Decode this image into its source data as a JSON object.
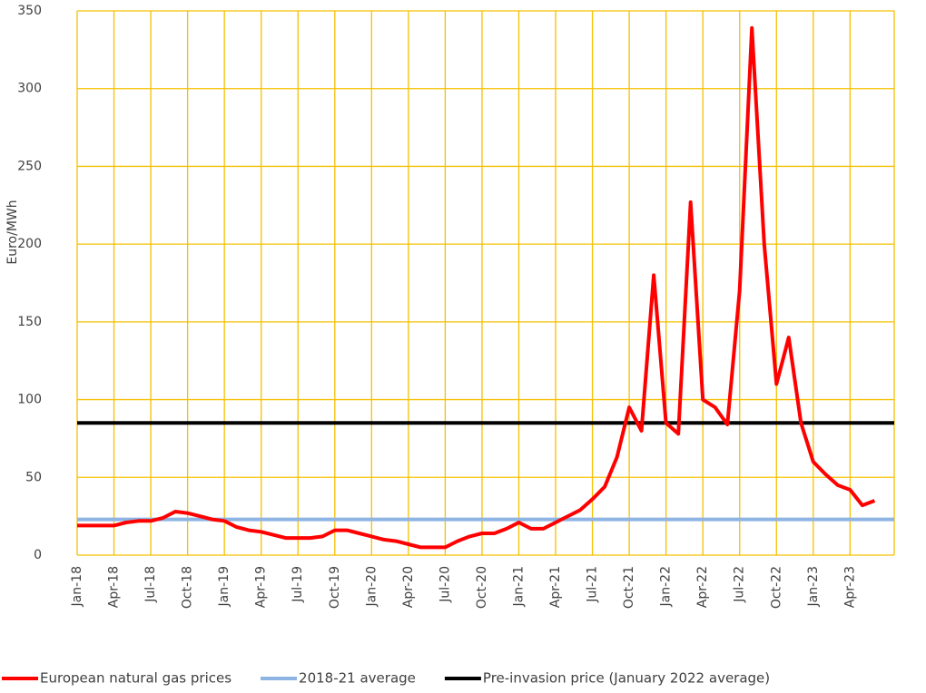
{
  "chart_data": {
    "type": "line",
    "y_label": "Euro/MWh",
    "categories": [
      "Jan-18",
      null,
      null,
      "Apr-18",
      null,
      null,
      "Jul-18",
      null,
      null,
      "Oct-18",
      null,
      null,
      "Jan-19",
      null,
      null,
      "Apr-19",
      null,
      null,
      "Jul-19",
      null,
      null,
      "Oct-19",
      null,
      null,
      "Jan-20",
      null,
      null,
      "Apr-20",
      null,
      null,
      "Jul-20",
      null,
      null,
      "Oct-20",
      null,
      null,
      "Jan-21",
      null,
      null,
      "Apr-21",
      null,
      null,
      "Jul-21",
      null,
      null,
      "Oct-21",
      null,
      null,
      "Jan-22",
      null,
      null,
      "Apr-22",
      null,
      null,
      "Jul-22",
      null,
      null,
      "Oct-22",
      null,
      null,
      "Jan-23",
      null,
      null,
      "Apr-23",
      null,
      null
    ],
    "series": [
      {
        "name": "European natural gas prices",
        "color": "#ff0000",
        "values": [
          19,
          19,
          19,
          19,
          21,
          22,
          22,
          24,
          28,
          27,
          25,
          23,
          22,
          18,
          16,
          15,
          13,
          11,
          11,
          11,
          12,
          16,
          16,
          14,
          12,
          10,
          9,
          7,
          5,
          5,
          5,
          9,
          12,
          14,
          14,
          17,
          21,
          17,
          17,
          21,
          25,
          29,
          36,
          44,
          63,
          95,
          80,
          180,
          85,
          78,
          227,
          100,
          95,
          84,
          170,
          339,
          200,
          110,
          140,
          85,
          60,
          52,
          45,
          42,
          32,
          35
        ]
      }
    ],
    "reference_lines": [
      {
        "name": "2018-21 average",
        "color": "#8db4e2",
        "value": 23
      },
      {
        "name": "Pre-invasion price (January 2022 average)",
        "color": "#000000",
        "value": 85
      }
    ],
    "ylim": [
      0,
      350
    ],
    "yticks": [
      0,
      50,
      100,
      150,
      200,
      250,
      300,
      350
    ],
    "grid": true,
    "grid_color": "#f5c000"
  }
}
